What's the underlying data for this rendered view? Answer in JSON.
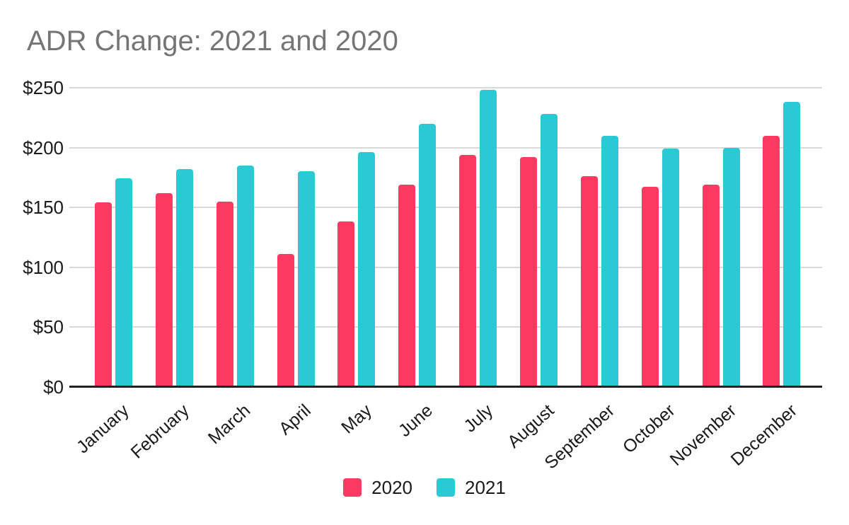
{
  "chart": {
    "title": "ADR Change: 2021 and 2020",
    "legend": [
      {
        "label": "2020",
        "color": "#FC3961"
      },
      {
        "label": "2021",
        "color": "#2BC9D3"
      }
    ]
  },
  "chart_data": {
    "type": "bar",
    "title": "ADR Change: 2021 and 2020",
    "categories": [
      "January",
      "February",
      "March",
      "April",
      "May",
      "June",
      "July",
      "August",
      "September",
      "October",
      "November",
      "December"
    ],
    "series": [
      {
        "name": "2020",
        "color": "#FC3961",
        "values": [
          154,
          162,
          155,
          111,
          138,
          169,
          194,
          192,
          176,
          167,
          169,
          210
        ]
      },
      {
        "name": "2021",
        "color": "#2BC9D3",
        "values": [
          174,
          182,
          185,
          180,
          196,
          220,
          248,
          228,
          210,
          199,
          200,
          238
        ]
      }
    ],
    "xlabel": "",
    "ylabel": "",
    "ylim": [
      0,
      250
    ],
    "ytick_step": 50,
    "ytick_labels": [
      "$0",
      "$50",
      "$100",
      "$150",
      "$200",
      "$250"
    ],
    "grid": true,
    "legend_position": "bottom",
    "bar_corner": "rounded-top"
  }
}
